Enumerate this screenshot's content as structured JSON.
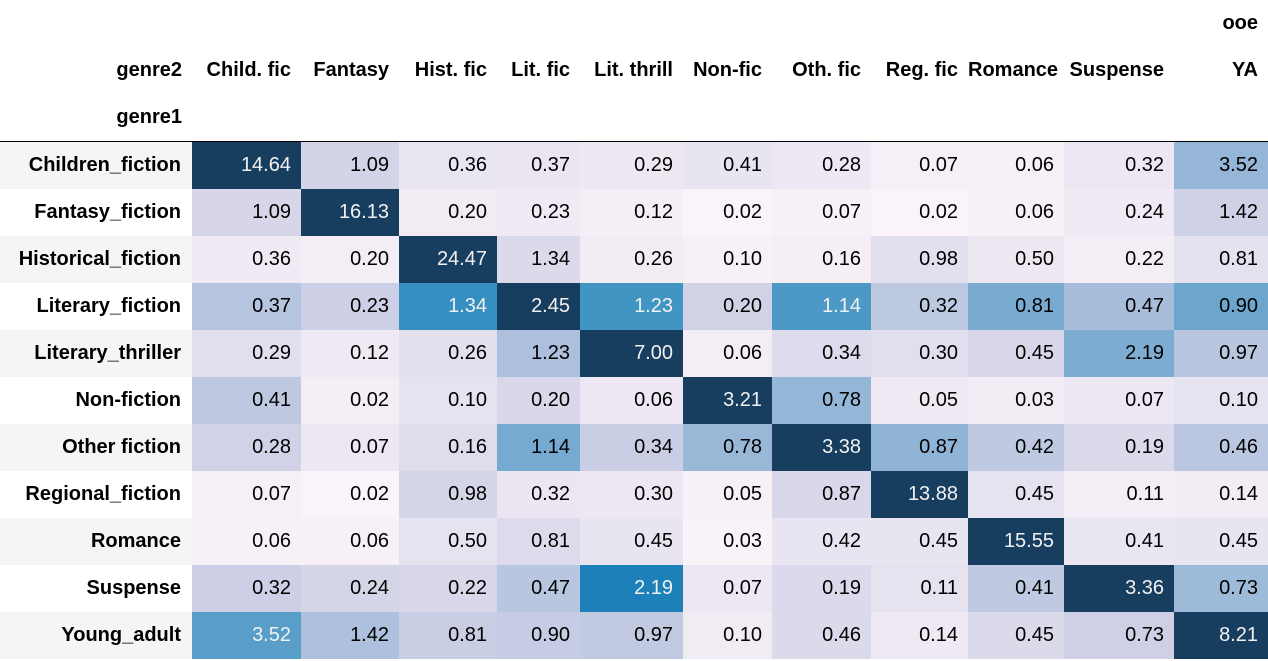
{
  "chart_data": {
    "type": "heatmap",
    "title": "",
    "top_header": "ooe",
    "column_axis_label": "genre2",
    "row_axis_label": "genre1",
    "columns": [
      "Child. fic",
      "Fantasy",
      "Hist. fic",
      "Lit. fic",
      "Lit. thrill",
      "Non-fic",
      "Oth. fic",
      "Reg. fic",
      "Romance",
      "Suspense",
      "YA"
    ],
    "rows": [
      "Children_fiction",
      "Fantasy_fiction",
      "Historical_fiction",
      "Literary_fiction",
      "Literary_thriller",
      "Non-fiction",
      "Other fiction",
      "Regional_fiction",
      "Romance",
      "Suspense",
      "Young_adult"
    ],
    "values": [
      [
        "14.64",
        "1.09",
        "0.36",
        "0.37",
        "0.29",
        "0.41",
        "0.28",
        "0.07",
        "0.06",
        "0.32",
        "3.52"
      ],
      [
        "1.09",
        "16.13",
        "0.20",
        "0.23",
        "0.12",
        "0.02",
        "0.07",
        "0.02",
        "0.06",
        "0.24",
        "1.42"
      ],
      [
        "0.36",
        "0.20",
        "24.47",
        "1.34",
        "0.26",
        "0.10",
        "0.16",
        "0.98",
        "0.50",
        "0.22",
        "0.81"
      ],
      [
        "0.37",
        "0.23",
        "1.34",
        "2.45",
        "1.23",
        "0.20",
        "1.14",
        "0.32",
        "0.81",
        "0.47",
        "0.90"
      ],
      [
        "0.29",
        "0.12",
        "0.26",
        "1.23",
        "7.00",
        "0.06",
        "0.34",
        "0.30",
        "0.45",
        "2.19",
        "0.97"
      ],
      [
        "0.41",
        "0.02",
        "0.10",
        "0.20",
        "0.06",
        "3.21",
        "0.78",
        "0.05",
        "0.03",
        "0.07",
        "0.10"
      ],
      [
        "0.28",
        "0.07",
        "0.16",
        "1.14",
        "0.34",
        "0.78",
        "3.38",
        "0.87",
        "0.42",
        "0.19",
        "0.46"
      ],
      [
        "0.07",
        "0.02",
        "0.98",
        "0.32",
        "0.30",
        "0.05",
        "0.87",
        "13.88",
        "0.45",
        "0.11",
        "0.14"
      ],
      [
        "0.06",
        "0.06",
        "0.50",
        "0.81",
        "0.45",
        "0.03",
        "0.42",
        "0.45",
        "15.55",
        "0.41",
        "0.45"
      ],
      [
        "0.32",
        "0.24",
        "0.22",
        "0.47",
        "2.19",
        "0.07",
        "0.19",
        "0.11",
        "0.41",
        "3.36",
        "0.73"
      ],
      [
        "3.52",
        "1.42",
        "0.81",
        "0.90",
        "0.97",
        "0.10",
        "0.46",
        "0.14",
        "0.45",
        "0.73",
        "8.21"
      ]
    ],
    "colormap": {
      "stops": [
        "#fff7fb",
        "#ece7f2",
        "#d0d1e6",
        "#a6bddb",
        "#74a9cf",
        "#3690c0",
        "#0570b0",
        "#045a8d",
        "#023858"
      ],
      "dark_stop": "#173d5f",
      "light_text": "#f1f1f1",
      "dark_text": "#000000"
    }
  }
}
